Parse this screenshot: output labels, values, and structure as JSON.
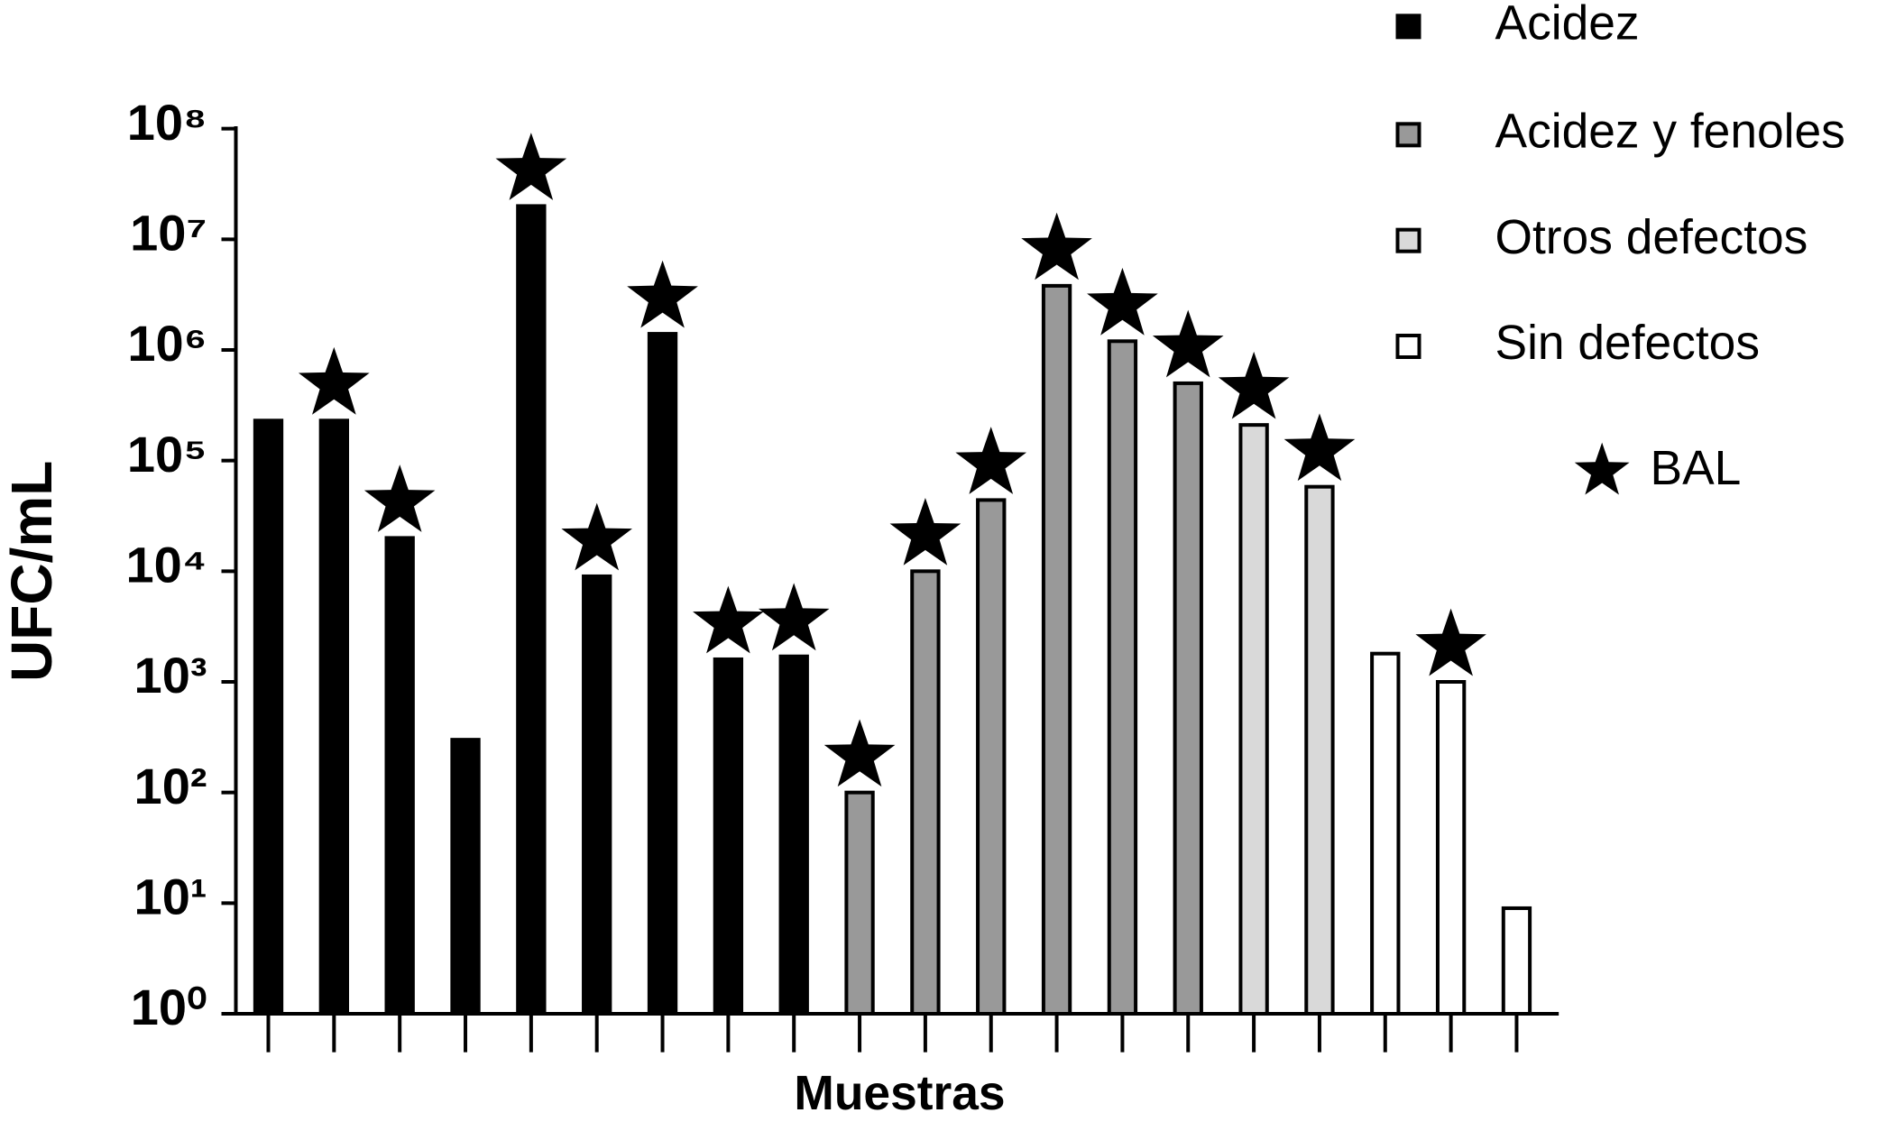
{
  "chart_data": {
    "type": "bar",
    "y_label": "UFC/mL",
    "x_label": "Muestras",
    "log_scale": true,
    "categories": [
      null,
      null,
      null,
      null,
      null,
      null,
      null,
      null,
      null,
      null,
      null,
      null,
      null,
      null,
      null,
      null,
      null,
      null,
      null,
      null
    ],
    "series": [
      {
        "name": "Acidez",
        "color": "#000000",
        "values": [
          230000,
          230000,
          20000,
          300,
          20000000,
          9000,
          1400000,
          1600,
          1700,
          null,
          null,
          null,
          null,
          null,
          null,
          null,
          null,
          null,
          null,
          null
        ]
      },
      {
        "name": "Acidez y fenoles",
        "color": "#999999",
        "values": [
          null,
          null,
          null,
          null,
          null,
          null,
          null,
          null,
          null,
          100,
          10000,
          44000,
          3800000,
          1200000,
          500000,
          null,
          null,
          null,
          null,
          null
        ]
      },
      {
        "name": "Otros defectos",
        "color": "#d9d9d9",
        "values": [
          null,
          null,
          null,
          null,
          null,
          null,
          null,
          null,
          null,
          null,
          null,
          null,
          null,
          null,
          null,
          210000,
          58000,
          null,
          null,
          null
        ]
      },
      {
        "name": "Sin defectos",
        "color": "#ffffff",
        "values": [
          null,
          null,
          null,
          null,
          null,
          null,
          null,
          null,
          null,
          null,
          null,
          null,
          null,
          null,
          null,
          null,
          null,
          1800,
          1000,
          9
        ]
      }
    ],
    "markers": {
      "name": "BAL",
      "points": [
        false,
        true,
        true,
        false,
        true,
        true,
        true,
        true,
        true,
        true,
        true,
        true,
        true,
        true,
        true,
        true,
        true,
        false,
        true,
        false
      ]
    },
    "ylim": [
      1,
      100000000
    ],
    "yticks": [
      {
        "value": 1,
        "label": "10⁰"
      },
      {
        "value": 10,
        "label": "10¹"
      },
      {
        "value": 100,
        "label": "10²"
      },
      {
        "value": 1000,
        "label": "10³"
      },
      {
        "value": 10000,
        "label": "10⁴"
      },
      {
        "value": 100000,
        "label": "10⁵"
      },
      {
        "value": 1000000,
        "label": "10⁶"
      },
      {
        "value": 10000000,
        "label": "10⁷"
      },
      {
        "value": 100000000,
        "label": "10⁸"
      }
    ],
    "legend_position": "upper right"
  }
}
